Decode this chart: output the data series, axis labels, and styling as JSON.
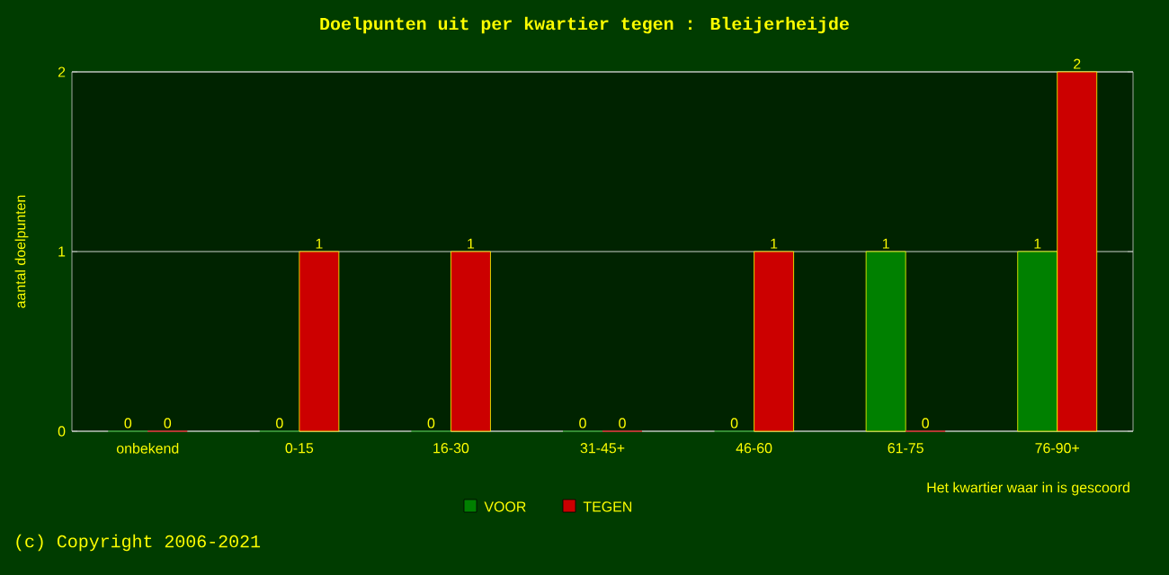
{
  "chart_data": {
    "type": "bar",
    "title": "Doelpunten uit per kwartier tegen : Bleijerheijde",
    "categories": [
      "onbekend",
      "0-15",
      "16-30",
      "31-45+",
      "46-60",
      "61-75",
      "76-90+"
    ],
    "series": [
      {
        "name": "VOOR",
        "color": "#008000",
        "values": [
          0,
          0,
          0,
          0,
          0,
          1,
          1
        ]
      },
      {
        "name": "TEGEN",
        "color": "#cc0000",
        "values": [
          0,
          1,
          1,
          0,
          1,
          0,
          2
        ]
      }
    ],
    "ylim": [
      0,
      2
    ],
    "yticks": [
      0,
      1,
      2
    ],
    "grid": "y",
    "legend": "bottom",
    "data_labels": true,
    "xlabel": "Het kwartier waar in is gescoord",
    "ylabel": "aantal doelpunten",
    "annotations": [
      "(c) Copyright 2006-2021"
    ]
  }
}
